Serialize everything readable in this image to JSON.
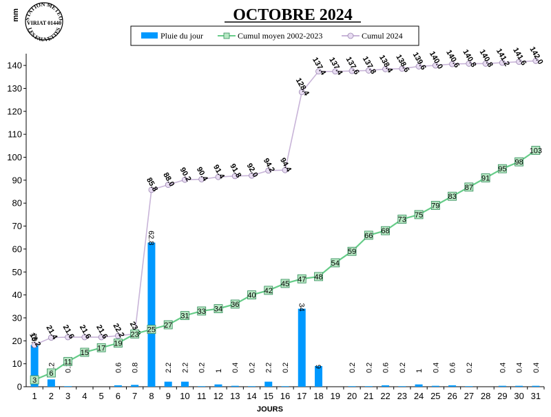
{
  "chart_data": {
    "type": "bar",
    "title": "OCTOBRE 2024",
    "ylabel": "mm",
    "xlabel": "JOURS",
    "ylim": [
      0,
      145
    ],
    "yticks": [
      0,
      10,
      20,
      30,
      40,
      50,
      60,
      70,
      80,
      90,
      100,
      110,
      120,
      130,
      140
    ],
    "categories": [
      "1",
      "2",
      "3",
      "4",
      "5",
      "6",
      "7",
      "8",
      "9",
      "10",
      "11",
      "12",
      "13",
      "14",
      "15",
      "16",
      "17",
      "18",
      "19",
      "20",
      "21",
      "22",
      "23",
      "24",
      "25",
      "26",
      "27",
      "28",
      "29",
      "30",
      "31"
    ],
    "series": [
      {
        "name": "Pluie du jour",
        "kind": "bar",
        "color": "#0099ff",
        "values": [
          18.2,
          3.2,
          0.2,
          null,
          null,
          0.6,
          0.8,
          62.8,
          2.2,
          2.2,
          0.2,
          1,
          0.4,
          0.2,
          2.2,
          0.2,
          34,
          9,
          null,
          0.2,
          0.2,
          0.6,
          0.2,
          1,
          0.4,
          0.6,
          0.2,
          null,
          0.4,
          0.4,
          0.4
        ],
        "labels": [
          "18.2",
          "3.2",
          "0.2",
          "",
          "",
          "0.6",
          "0.8",
          "62.8",
          "2.2",
          "2.2",
          "0.2",
          "1",
          "0.4",
          "0.2",
          "2.2",
          "0.2",
          "34",
          "9",
          "",
          "0.2",
          "0.2",
          "0.6",
          "0.2",
          "1",
          "0.4",
          "0.6",
          "0.2",
          "",
          "0.4",
          "0.4",
          "0.4"
        ]
      },
      {
        "name": "Cumul moyen 2002-2023",
        "kind": "line",
        "color": "#66cc88",
        "values": [
          3,
          6,
          11,
          15,
          17,
          19,
          23,
          25,
          27,
          31,
          33,
          34,
          36,
          40,
          42,
          45,
          47,
          48,
          54,
          59,
          66,
          68,
          73,
          75,
          79,
          83,
          87,
          91,
          95,
          98,
          103
        ],
        "labels": [
          "3",
          "6",
          "11",
          "15",
          "17",
          "19",
          "23",
          "25",
          "27",
          "31",
          "33",
          "34",
          "36",
          "40",
          "42",
          "45",
          "47",
          "48",
          "54",
          "59",
          "66",
          "68",
          "73",
          "75",
          "79",
          "83",
          "87",
          "91",
          "95",
          "98",
          "103"
        ]
      },
      {
        "name": "Cumul 2024",
        "kind": "line",
        "color": "#c8b4d8",
        "values": [
          18.2,
          21.4,
          21.6,
          21.6,
          21.6,
          22.2,
          23.0,
          85.8,
          88.0,
          90.2,
          90.4,
          91.4,
          91.8,
          92.0,
          94.2,
          94.4,
          128.4,
          137.4,
          137.4,
          137.6,
          137.8,
          138.4,
          138.6,
          139.6,
          140.0,
          140.6,
          140.8,
          140.8,
          141.2,
          141.6,
          142.0
        ],
        "labels": [
          "18.2",
          "21.4",
          "21.6",
          "21.6",
          "21.6",
          "22.2",
          "23.0",
          "85.8",
          "88.0",
          "90.2",
          "90.4",
          "91.4",
          "91.8",
          "92.0",
          "94.2",
          "94.4",
          "128.4",
          "137.4",
          "137.4",
          "137.6",
          "137.8",
          "138.4",
          "138.6",
          "139.6",
          "140.0",
          "140.6",
          "140.8",
          "140.8",
          "141.2",
          "141.6",
          "142.0"
        ]
      }
    ],
    "grid": false,
    "legend": "top-center"
  },
  "stamp": {
    "line1": "STATION METEO",
    "line2": "VIRIAT 01440",
    "line3": "LES FAUVETTES"
  }
}
